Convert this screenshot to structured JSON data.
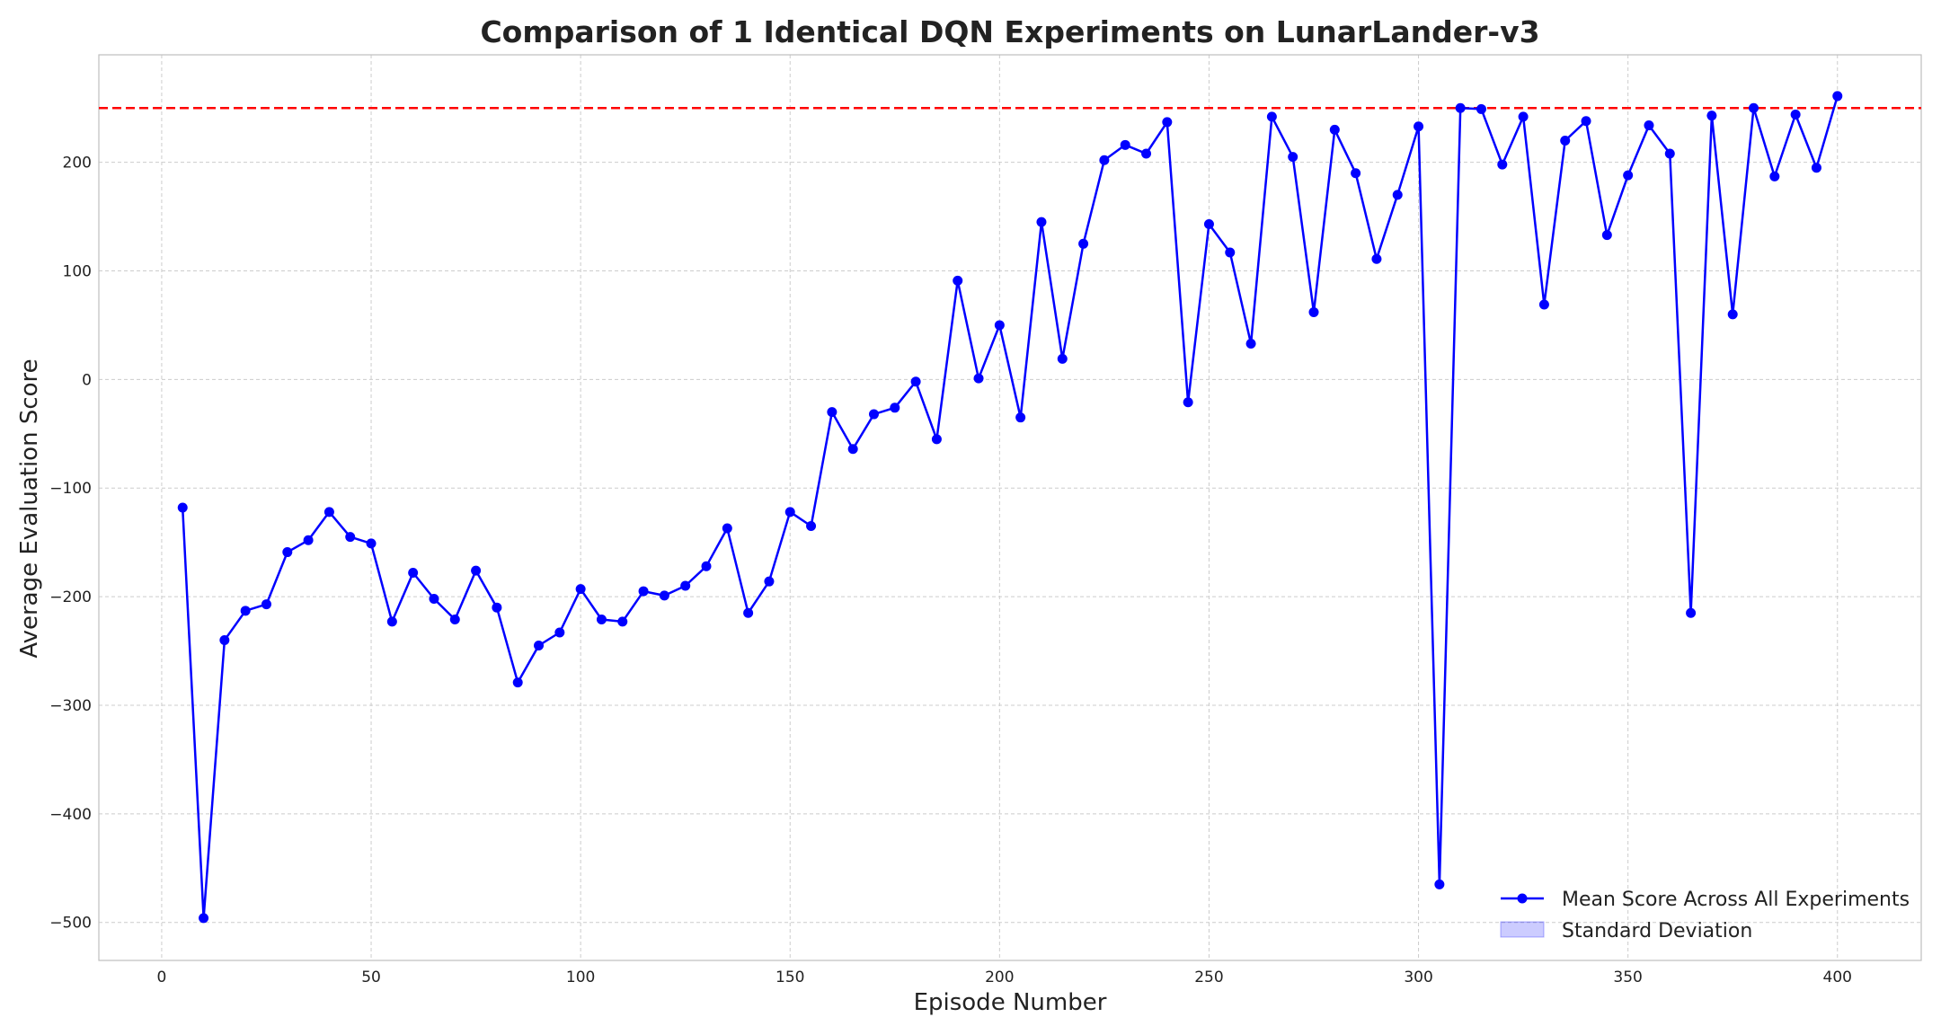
{
  "chart_data": {
    "type": "line",
    "title": "Comparison of 1 Identical DQN Experiments on LunarLander-v3",
    "xlabel": "Episode Number",
    "ylabel": "Average Evaluation Score",
    "xlim": [
      -15,
      420
    ],
    "ylim": [
      -535,
      299
    ],
    "xticks": [
      0,
      50,
      100,
      150,
      200,
      250,
      300,
      350,
      400
    ],
    "yticks": [
      -500,
      -400,
      -300,
      -200,
      -100,
      0,
      100,
      200
    ],
    "xtick_labels": [
      "0",
      "50",
      "100",
      "150",
      "200",
      "250",
      "300",
      "350",
      "400"
    ],
    "ytick_labels": [
      "−500",
      "−400",
      "−300",
      "−200",
      "−100",
      "0",
      "100",
      "200"
    ],
    "grid": true,
    "legend_position": "lower-right",
    "threshold": {
      "y": 250,
      "color": "#ff0000",
      "style": "dashed"
    },
    "series": [
      {
        "name": "Mean Score Across All Experiments",
        "color": "#0000ff",
        "marker": "circle",
        "x": [
          5,
          10,
          15,
          20,
          25,
          30,
          35,
          40,
          45,
          50,
          55,
          60,
          65,
          70,
          75,
          80,
          85,
          90,
          95,
          100,
          105,
          110,
          115,
          120,
          125,
          130,
          135,
          140,
          145,
          150,
          155,
          160,
          165,
          170,
          175,
          180,
          185,
          190,
          195,
          200,
          205,
          210,
          215,
          220,
          225,
          230,
          235,
          240,
          245,
          250,
          255,
          260,
          265,
          270,
          275,
          280,
          285,
          290,
          295,
          300,
          305,
          310,
          315,
          320,
          325,
          330,
          335,
          340,
          345,
          350,
          355,
          360,
          365,
          370,
          375,
          380,
          385,
          390,
          395,
          400
        ],
        "y": [
          -118,
          -496,
          -240,
          -213,
          -207,
          -159,
          -148,
          -122,
          -145,
          -151,
          -223,
          -178,
          -202,
          -221,
          -176,
          -210,
          -279,
          -245,
          -233,
          -193,
          -221,
          -223,
          -195,
          -199,
          -190,
          -172,
          -137,
          -215,
          -186,
          -122,
          -135,
          -30,
          -64,
          -32,
          -26,
          -2,
          -55,
          91,
          1,
          50,
          -35,
          145,
          19,
          125,
          202,
          216,
          208,
          237,
          -21,
          143,
          117,
          33,
          242,
          205,
          62,
          230,
          190,
          111,
          170,
          233,
          -465,
          250,
          249,
          198,
          242,
          69,
          220,
          238,
          133,
          188,
          234,
          208,
          -215,
          243,
          60,
          250,
          187,
          244,
          195,
          261
        ]
      },
      {
        "name": "Standard Deviation",
        "color": "#0000ff",
        "fill_opacity": 0.2,
        "type": "area",
        "values": []
      }
    ]
  }
}
